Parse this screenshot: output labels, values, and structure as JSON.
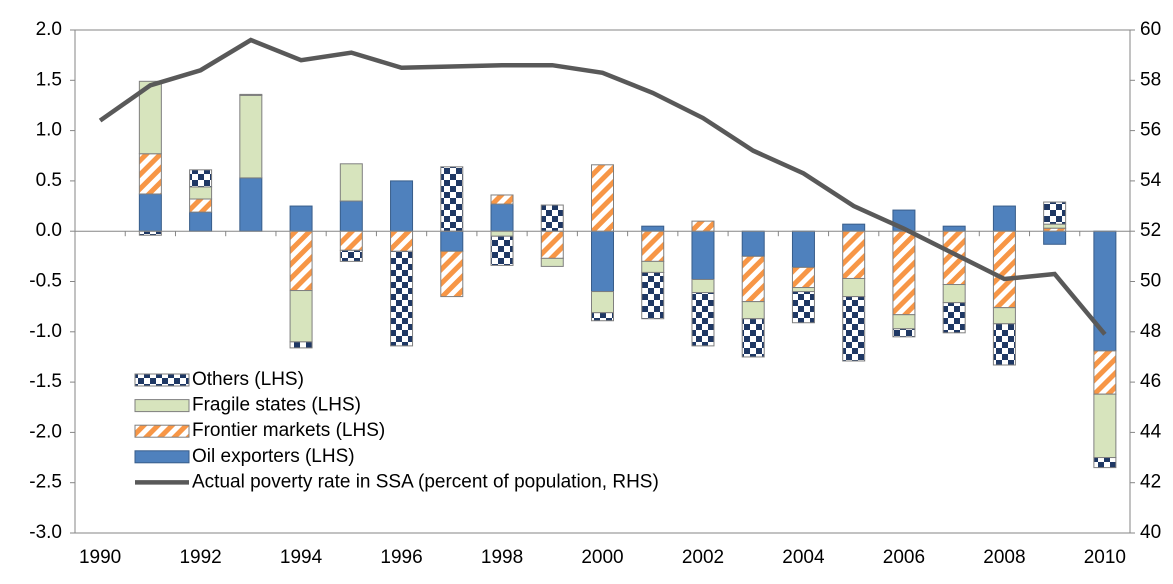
{
  "chart_data": {
    "type": "bar",
    "categories": [
      "1990",
      null,
      "1992",
      null,
      "1994",
      null,
      "1996",
      null,
      "1998",
      null,
      "2000",
      null,
      "2002",
      null,
      "2004",
      null,
      "2006",
      null,
      "2008",
      null,
      "2010"
    ],
    "series": [
      {
        "name": "Others (LHS)",
        "color": "#1f3864",
        "pattern": "checker",
        "values": [
          null,
          -0.04,
          0.17,
          0.01,
          -0.06,
          -0.11,
          -0.94,
          0.64,
          -0.29,
          0.26,
          -0.08,
          -0.46,
          -0.53,
          -0.38,
          -0.31,
          -0.64,
          -0.08,
          -0.3,
          -0.41,
          0.22,
          -0.1
        ]
      },
      {
        "name": "Fragile states (LHS)",
        "color": "#d7e4bd",
        "pattern": "solid",
        "values": [
          null,
          0.72,
          0.12,
          0.82,
          -0.51,
          0.37,
          0,
          0,
          -0.05,
          -0.08,
          -0.21,
          -0.11,
          -0.13,
          -0.17,
          -0.04,
          -0.18,
          -0.14,
          -0.18,
          -0.16,
          0.04,
          -0.63
        ]
      },
      {
        "name": "Frontier markets (LHS)",
        "color": "#f79646",
        "pattern": "stripes",
        "values": [
          null,
          0.4,
          0.13,
          0,
          -0.59,
          -0.19,
          -0.2,
          -0.45,
          0.09,
          -0.27,
          0.66,
          -0.3,
          0.1,
          -0.45,
          -0.2,
          -0.47,
          -0.83,
          -0.53,
          -0.76,
          0.03,
          -0.43
        ]
      },
      {
        "name": "Oil exporters (LHS)",
        "color": "#4f81bd",
        "pattern": "solid",
        "values": [
          null,
          0.37,
          0.19,
          0.53,
          0.25,
          0.3,
          0.5,
          -0.2,
          0.27,
          0,
          -0.6,
          0.05,
          -0.48,
          -0.25,
          -0.36,
          0.07,
          0.21,
          0.05,
          0.25,
          -0.13,
          -1.19
        ]
      },
      {
        "name": "Actual poverty rate in SSA (percent of population, RHS)",
        "color": "#595959",
        "type": "line",
        "axis": "y2",
        "values": [
          56.4,
          57.8,
          58.4,
          59.6,
          58.8,
          59.1,
          58.5,
          58.55,
          58.6,
          58.6,
          58.3,
          57.5,
          56.5,
          55.2,
          54.3,
          53.0,
          52.1,
          51.1,
          50.1,
          50.3,
          47.9
        ]
      }
    ],
    "ylim": [
      -3,
      2
    ],
    "yticks": [
      {
        "value": -3,
        "label": "-3.0"
      },
      {
        "value": -2.5,
        "label": "-2.5"
      },
      {
        "value": -2,
        "label": "-2.0"
      },
      {
        "value": -1.5,
        "label": "-1.5"
      },
      {
        "value": -1,
        "label": "-1.0"
      },
      {
        "value": -0.5,
        "label": "-0.5"
      },
      {
        "value": 0,
        "label": "0.0"
      },
      {
        "value": 0.5,
        "label": "0.5"
      },
      {
        "value": 1,
        "label": "1.0"
      },
      {
        "value": 1.5,
        "label": "1.5"
      },
      {
        "value": 2,
        "label": "2.0"
      }
    ],
    "y2lim": [
      40,
      60
    ],
    "y2ticks": [
      40,
      42,
      44,
      46,
      48,
      50,
      52,
      54,
      56,
      58,
      60
    ],
    "legend": "lower left",
    "grid": false
  }
}
